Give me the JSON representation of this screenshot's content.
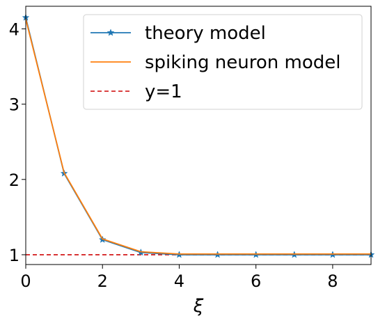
{
  "chart_data": {
    "type": "line",
    "title": "",
    "xlabel": "ξ",
    "ylabel": "",
    "xlim": [
      0,
      9
    ],
    "ylim": [
      0.87,
      4.3
    ],
    "xticks": [
      0,
      2,
      4,
      6,
      8
    ],
    "yticks": [
      1,
      2,
      3,
      4
    ],
    "grid": false,
    "legend_position": "top-right",
    "x": [
      0,
      1,
      2,
      3,
      4,
      5,
      6,
      7,
      8,
      9
    ],
    "series": [
      {
        "name": "theory model",
        "color": "#1f77b4",
        "marker": "star",
        "values": [
          4.15,
          2.08,
          1.2,
          1.03,
          1.0,
          1.0,
          1.0,
          1.0,
          1.0,
          1.0
        ]
      },
      {
        "name": "spiking neuron model",
        "color": "#ff7f0e",
        "marker": "none",
        "values": [
          4.13,
          2.09,
          1.21,
          1.04,
          1.01,
          1.01,
          1.01,
          1.01,
          1.01,
          1.01
        ]
      }
    ],
    "reference_line": {
      "name": "y=1",
      "y": 1,
      "color": "#d62728",
      "style": "dashed"
    }
  }
}
